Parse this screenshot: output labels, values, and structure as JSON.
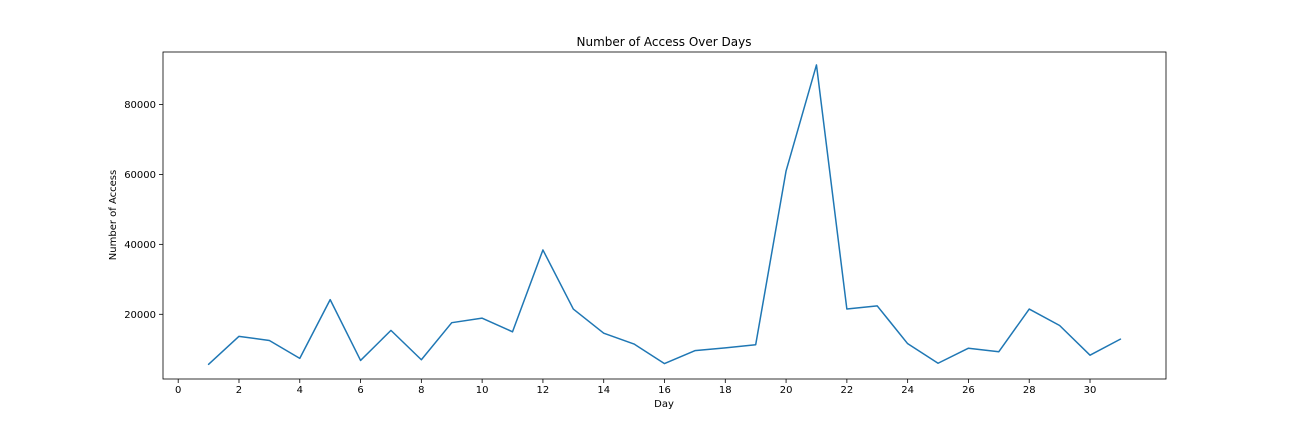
{
  "chart_data": {
    "type": "line",
    "title": "Number of Access Over Days",
    "xlabel": "Day",
    "ylabel": "Number of Access",
    "xlim": [
      -0.5,
      32.5
    ],
    "ylim": [
      1500,
      95000
    ],
    "x_ticks": [
      0,
      2,
      4,
      6,
      8,
      10,
      12,
      14,
      16,
      18,
      20,
      22,
      24,
      26,
      28,
      30
    ],
    "y_ticks": [
      20000,
      40000,
      60000,
      80000
    ],
    "grid": false,
    "legend": "none",
    "line_color": "#1f77b4",
    "series": [
      {
        "x": [
          1,
          2,
          3,
          4,
          5,
          6,
          7,
          8,
          9,
          10,
          11,
          12,
          13,
          14,
          15,
          16,
          17,
          18,
          19,
          20,
          21,
          22,
          23,
          24,
          25,
          26,
          27,
          28,
          29,
          30,
          31
        ],
        "values": [
          5700,
          13700,
          12500,
          7400,
          24200,
          6800,
          15400,
          7000,
          17600,
          18900,
          15000,
          38400,
          21500,
          14600,
          11500,
          5900,
          9600,
          10400,
          11300,
          61000,
          91300,
          21500,
          22400,
          11600,
          6000,
          10300,
          9300,
          21500,
          16800,
          8300,
          12900
        ]
      }
    ]
  }
}
